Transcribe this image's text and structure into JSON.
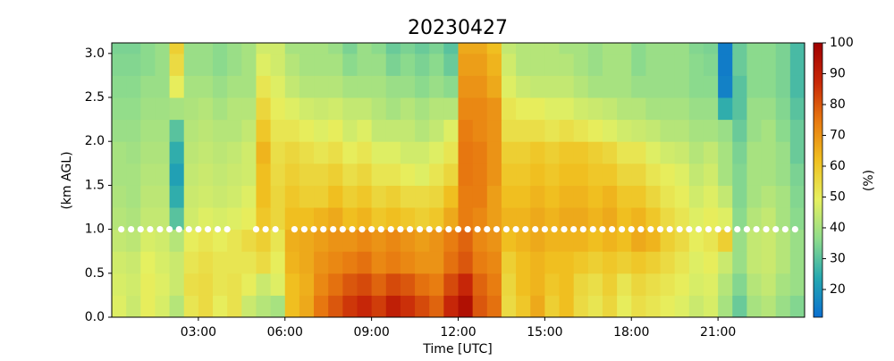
{
  "chart_data": {
    "type": "heatmap",
    "title": "20230427",
    "x_label": "Time [UTC]",
    "y_label": "(km AGL)",
    "colorbar_label": "(%)",
    "xlim": [
      0,
      24
    ],
    "ylim": [
      0,
      3.12
    ],
    "xticks": [
      {
        "value": 3,
        "label": "03:00"
      },
      {
        "value": 6,
        "label": "06:00"
      },
      {
        "value": 9,
        "label": "09:00"
      },
      {
        "value": 12,
        "label": "12:00"
      },
      {
        "value": 15,
        "label": "15:00"
      },
      {
        "value": 18,
        "label": "18:00"
      },
      {
        "value": 21,
        "label": "21:00"
      }
    ],
    "yticks": [
      {
        "value": 0,
        "label": "0.0"
      },
      0.5,
      {
        "value": 1,
        "label": "1.0"
      },
      1.5,
      {
        "value": 2,
        "label": "2.0"
      },
      2.5,
      {
        "value": 3,
        "label": "3.0"
      }
    ],
    "clim": [
      11,
      100
    ],
    "cticks": [
      20,
      30,
      40,
      50,
      60,
      70,
      80,
      90,
      100
    ],
    "colors": [
      "#0b6fd0",
      "#25a8b0",
      "#8fdc8c",
      "#e6f060",
      "#f0c020",
      "#e87a10",
      "#c82808",
      "#a00000"
    ],
    "x": [
      0,
      0.5,
      1,
      1.5,
      2,
      2.5,
      3,
      3.5,
      4,
      4.5,
      5,
      5.5,
      6,
      6.5,
      7,
      7.5,
      8,
      8.5,
      9,
      9.5,
      10,
      10.5,
      11,
      11.5,
      12,
      12.5,
      13,
      13.5,
      14,
      14.5,
      15,
      15.5,
      16,
      16.5,
      17,
      17.5,
      18,
      18.5,
      19,
      19.5,
      20,
      20.5,
      21,
      21.5,
      22,
      22.5,
      23,
      23.5
    ],
    "y": [
      0,
      0.25,
      0.5,
      0.75,
      1,
      1.25,
      1.5,
      1.75,
      2,
      2.25,
      2.5,
      2.75,
      3
    ],
    "z": [
      [
        48,
        45,
        50,
        47,
        42,
        52,
        55,
        50,
        53,
        45,
        42,
        40,
        62,
        66,
        75,
        80,
        85,
        88,
        84,
        90,
        86,
        82,
        78,
        88,
        95,
        80,
        76,
        55,
        60,
        66,
        58,
        62,
        55,
        52,
        56,
        50,
        54,
        52,
        50,
        48,
        45,
        47,
        40,
        32,
        40,
        42,
        38,
        35
      ],
      [
        47,
        46,
        50,
        48,
        45,
        54,
        55,
        52,
        53,
        50,
        45,
        48,
        62,
        65,
        72,
        76,
        80,
        82,
        78,
        82,
        80,
        76,
        74,
        82,
        88,
        78,
        74,
        56,
        62,
        64,
        60,
        62,
        56,
        54,
        58,
        52,
        56,
        54,
        52,
        50,
        47,
        48,
        42,
        35,
        42,
        44,
        40,
        38
      ],
      [
        46,
        45,
        49,
        47,
        45,
        52,
        54,
        52,
        52,
        52,
        55,
        50,
        64,
        66,
        70,
        72,
        74,
        76,
        72,
        74,
        72,
        70,
        70,
        76,
        80,
        74,
        72,
        58,
        62,
        64,
        62,
        62,
        60,
        58,
        60,
        58,
        60,
        58,
        55,
        52,
        48,
        50,
        45,
        38,
        44,
        45,
        42,
        38
      ],
      [
        44,
        43,
        47,
        46,
        42,
        50,
        52,
        50,
        52,
        55,
        58,
        52,
        65,
        66,
        68,
        70,
        70,
        72,
        70,
        72,
        70,
        68,
        70,
        74,
        78,
        72,
        70,
        62,
        64,
        66,
        64,
        64,
        64,
        62,
        64,
        62,
        66,
        64,
        58,
        55,
        50,
        52,
        58,
        38,
        44,
        45,
        42,
        38
      ],
      [
        42,
        41,
        44,
        44,
        30,
        46,
        48,
        47,
        48,
        50,
        60,
        56,
        62,
        62,
        64,
        66,
        62,
        64,
        60,
        62,
        60,
        58,
        60,
        66,
        74,
        72,
        68,
        64,
        64,
        66,
        64,
        66,
        66,
        64,
        66,
        62,
        64,
        60,
        55,
        52,
        48,
        50,
        48,
        36,
        42,
        44,
        40,
        36
      ],
      [
        41,
        40,
        43,
        43,
        25,
        45,
        46,
        45,
        46,
        48,
        62,
        56,
        60,
        58,
        58,
        62,
        58,
        60,
        56,
        58,
        55,
        55,
        56,
        62,
        74,
        74,
        68,
        62,
        62,
        64,
        62,
        64,
        64,
        62,
        64,
        60,
        60,
        56,
        52,
        50,
        46,
        48,
        44,
        35,
        40,
        42,
        40,
        35
      ],
      [
        40,
        40,
        42,
        42,
        22,
        44,
        45,
        44,
        45,
        46,
        62,
        55,
        58,
        56,
        56,
        58,
        54,
        56,
        52,
        52,
        50,
        48,
        52,
        56,
        75,
        74,
        70,
        60,
        60,
        62,
        60,
        62,
        62,
        60,
        60,
        56,
        56,
        52,
        50,
        48,
        44,
        46,
        40,
        35,
        40,
        40,
        38,
        34
      ],
      [
        40,
        39,
        41,
        41,
        25,
        43,
        44,
        43,
        44,
        46,
        64,
        54,
        56,
        54,
        52,
        54,
        50,
        52,
        48,
        48,
        46,
        46,
        48,
        52,
        75,
        74,
        70,
        58,
        58,
        60,
        58,
        60,
        60,
        58,
        56,
        52,
        52,
        48,
        46,
        45,
        42,
        44,
        40,
        34,
        40,
        40,
        38,
        32
      ],
      [
        38,
        38,
        40,
        40,
        30,
        42,
        43,
        42,
        42,
        44,
        60,
        52,
        52,
        50,
        48,
        50,
        46,
        48,
        44,
        44,
        44,
        42,
        44,
        48,
        74,
        72,
        70,
        54,
        54,
        54,
        52,
        54,
        52,
        50,
        48,
        46,
        45,
        44,
        42,
        42,
        40,
        40,
        38,
        32,
        38,
        40,
        36,
        32
      ],
      [
        37,
        37,
        39,
        39,
        40,
        41,
        42,
        40,
        42,
        42,
        56,
        50,
        48,
        46,
        45,
        46,
        44,
        44,
        42,
        40,
        42,
        40,
        42,
        42,
        72,
        72,
        70,
        52,
        50,
        50,
        48,
        48,
        46,
        45,
        44,
        42,
        42,
        40,
        40,
        40,
        38,
        38,
        25,
        30,
        38,
        38,
        35,
        30
      ],
      [
        36,
        36,
        38,
        38,
        50,
        40,
        40,
        38,
        40,
        40,
        52,
        48,
        44,
        42,
        42,
        42,
        40,
        40,
        40,
        38,
        38,
        36,
        38,
        36,
        70,
        70,
        66,
        48,
        45,
        44,
        44,
        44,
        42,
        40,
        40,
        40,
        38,
        38,
        38,
        38,
        36,
        36,
        15,
        30,
        36,
        36,
        34,
        28
      ],
      [
        35,
        35,
        36,
        38,
        55,
        38,
        38,
        36,
        38,
        40,
        48,
        46,
        42,
        40,
        40,
        40,
        36,
        38,
        38,
        34,
        36,
        34,
        36,
        32,
        68,
        68,
        64,
        46,
        42,
        42,
        42,
        42,
        40,
        38,
        40,
        40,
        36,
        38,
        38,
        38,
        36,
        35,
        14,
        32,
        36,
        36,
        34,
        28
      ],
      [
        34,
        34,
        36,
        38,
        58,
        38,
        38,
        36,
        38,
        40,
        46,
        46,
        40,
        40,
        40,
        38,
        34,
        38,
        36,
        32,
        34,
        32,
        34,
        30,
        66,
        66,
        62,
        44,
        42,
        42,
        42,
        40,
        40,
        38,
        40,
        40,
        36,
        38,
        38,
        38,
        35,
        34,
        14,
        32,
        36,
        36,
        34,
        28
      ]
    ],
    "markers": {
      "color": "#ffffff",
      "x": [
        0.33,
        0.67,
        1,
        1.33,
        1.67,
        2,
        2.33,
        2.67,
        3,
        3.33,
        3.67,
        4,
        4.33,
        4.67,
        5,
        5.33,
        5.67,
        6,
        6.33,
        6.67,
        7,
        7.33,
        7.67,
        8,
        8.33,
        8.67,
        9,
        9.33,
        9.67,
        10,
        10.33,
        10.67,
        11,
        11.33,
        11.67,
        12,
        12.33,
        12.67,
        13,
        13.33,
        13.67,
        14,
        14.33,
        14.67,
        15,
        15.33,
        15.67,
        16,
        16.33,
        16.67,
        17,
        17.33,
        17.67,
        18,
        18.33,
        18.67,
        19,
        19.33,
        19.67,
        20,
        20.33,
        20.67,
        21,
        21.33,
        21.67,
        22,
        22.33,
        22.67,
        23,
        23.33,
        23.67
      ],
      "y": [
        1,
        1,
        1,
        1,
        1,
        1,
        1,
        1,
        1,
        1,
        1,
        1,
        null,
        null,
        1,
        1,
        1,
        null,
        1,
        1,
        1,
        1,
        1,
        1,
        1,
        1,
        1,
        1,
        1,
        1,
        1,
        1,
        1,
        1,
        1,
        1,
        1,
        1,
        1,
        1,
        1,
        1,
        1,
        1,
        1,
        1,
        1,
        1,
        1,
        1,
        1,
        1,
        1,
        1,
        1,
        1,
        1,
        1,
        1,
        1,
        1,
        1,
        1,
        1,
        1,
        1,
        1,
        1,
        1,
        1,
        1
      ]
    }
  }
}
